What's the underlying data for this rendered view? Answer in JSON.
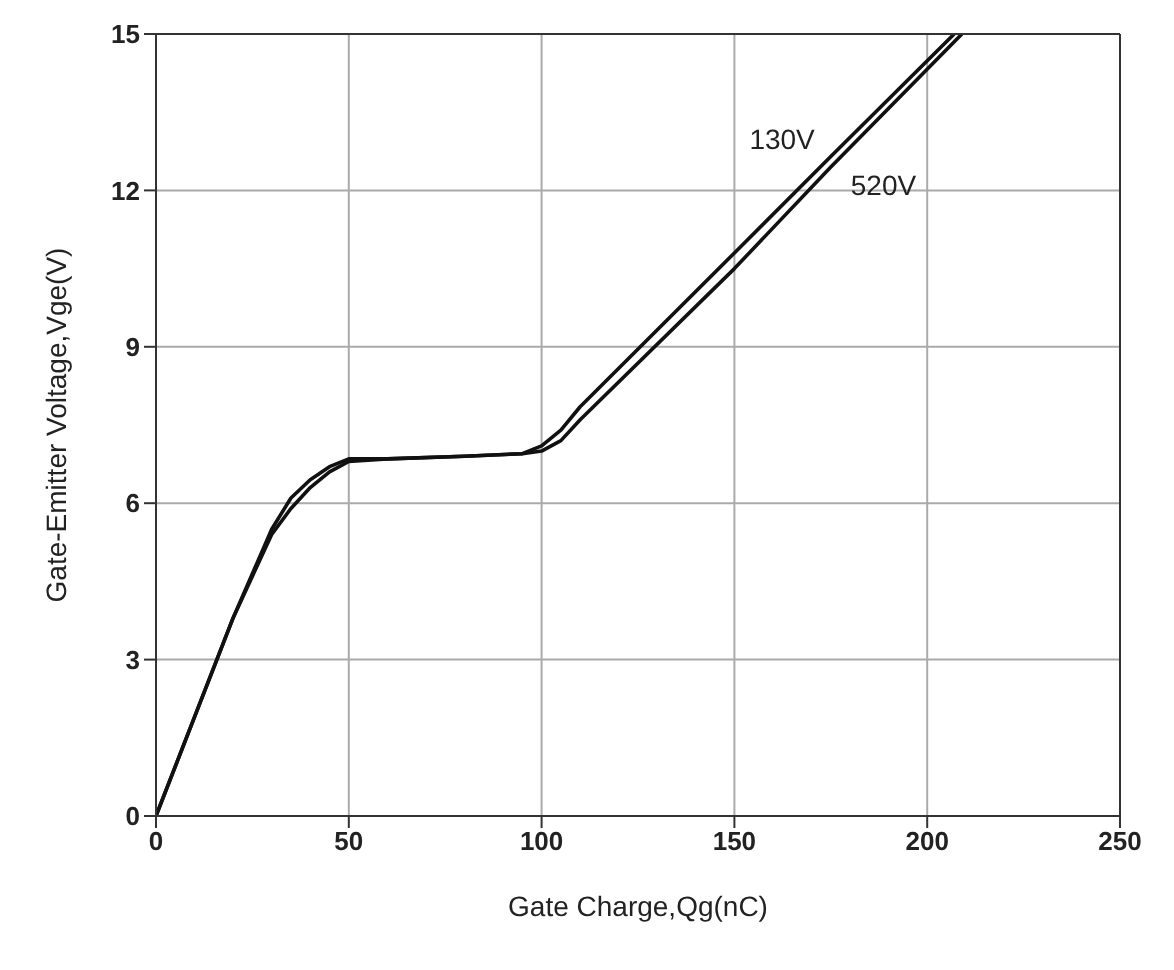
{
  "chart_data": {
    "type": "line",
    "xlabel": "Gate Charge,Qg(nC)",
    "ylabel": "Gate-Emitter Voltage,Vge(V)",
    "xlim": [
      0,
      250
    ],
    "xticks": [
      0,
      50,
      100,
      150,
      200,
      250
    ],
    "ylim": [
      0,
      15
    ],
    "yticks": [
      0,
      3,
      6,
      9,
      12,
      15
    ],
    "grid": true,
    "line_style": "solid",
    "series": [
      {
        "name": "130V",
        "color": "#111111",
        "x": [
          0,
          10,
          20,
          30,
          35,
          40,
          45,
          50,
          60,
          80,
          95,
          100,
          105,
          110,
          150,
          175,
          207
        ],
        "values": [
          0,
          1.9,
          3.8,
          5.5,
          6.1,
          6.45,
          6.7,
          6.85,
          6.85,
          6.9,
          6.95,
          7.1,
          7.4,
          7.85,
          10.8,
          12.65,
          15
        ]
      },
      {
        "name": "520V",
        "color": "#111111",
        "x": [
          0,
          10,
          20,
          30,
          35,
          40,
          45,
          50,
          60,
          80,
          95,
          100,
          105,
          110,
          150,
          175,
          209
        ],
        "values": [
          0,
          1.9,
          3.8,
          5.4,
          5.9,
          6.3,
          6.6,
          6.8,
          6.85,
          6.9,
          6.95,
          7.0,
          7.2,
          7.6,
          10.5,
          12.45,
          15
        ]
      }
    ]
  }
}
